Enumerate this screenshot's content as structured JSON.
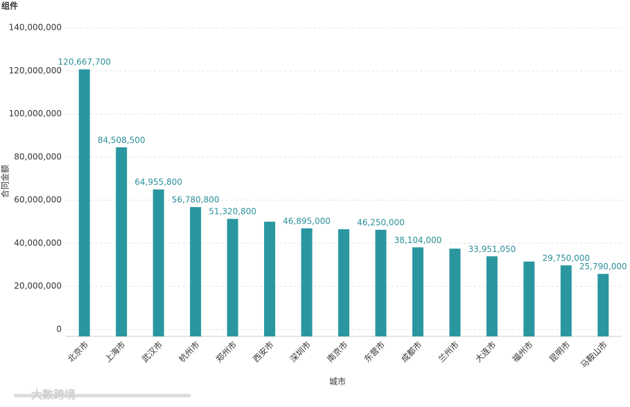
{
  "title": "组件",
  "watermark": "大数跨境",
  "chart_data": {
    "type": "bar",
    "xlabel": "城市",
    "ylabel": "合同金额",
    "categories": [
      "北京市",
      "上海市",
      "武汉市",
      "杭州市",
      "郑州市",
      "西安市",
      "深圳市",
      "南京市",
      "东营市",
      "成都市",
      "兰州市",
      "大连市",
      "福州市",
      "昆明市",
      "马鞍山市"
    ],
    "values": [
      120667700,
      84508500,
      64955800,
      56780800,
      51320800,
      50000000,
      46895000,
      46500000,
      46250000,
      38104000,
      37500000,
      33951050,
      31500000,
      29750000,
      25790000
    ],
    "value_labels": [
      "120,667,700",
      "84,508,500",
      "64,955,800",
      "56,780,800",
      "51,320,800",
      null,
      "46,895,000",
      null,
      "46,250,000",
      "38,104,000",
      null,
      "33,951,050",
      null,
      "29,750,000",
      "25,790,000"
    ],
    "color": "#2a97a0",
    "ylim": [
      0,
      140000000
    ],
    "yticks": [
      0,
      {
        "value": 20000000,
        "label": "20,000,000"
      },
      {
        "value": 40000000,
        "label": "40,000,000"
      },
      {
        "value": 60000000,
        "label": "60,000,000"
      },
      {
        "value": 80000000,
        "label": "80,000,000"
      },
      {
        "value": 100000000,
        "label": "100,000,000"
      },
      {
        "value": 120000000,
        "label": "120,000,000"
      },
      {
        "value": 140000000,
        "label": "140,000,000"
      }
    ],
    "grid": true
  }
}
